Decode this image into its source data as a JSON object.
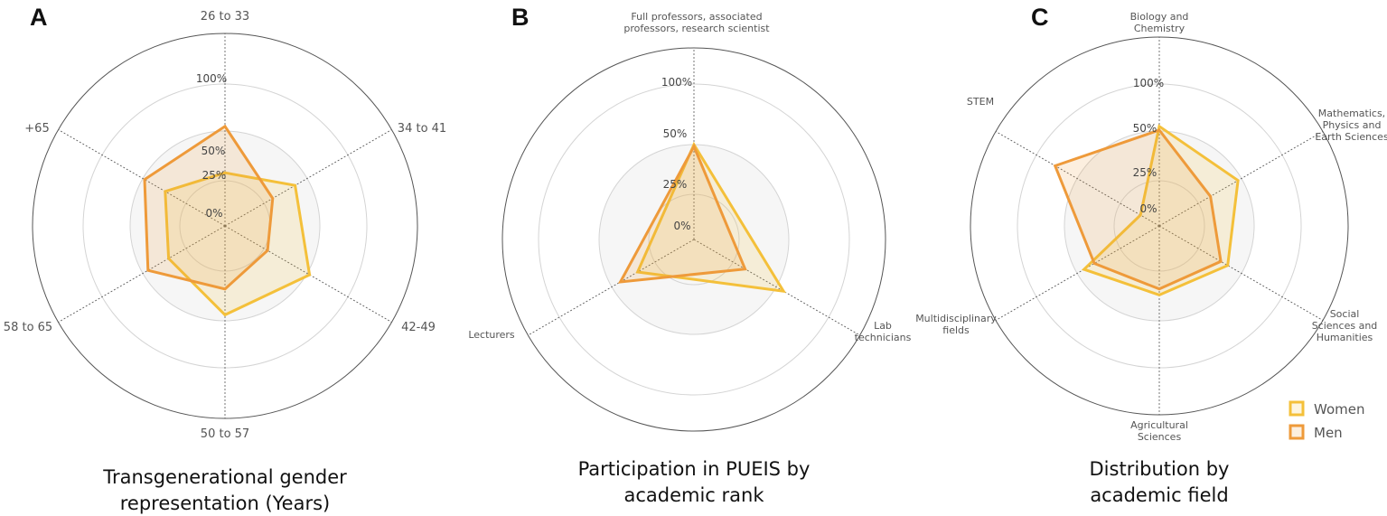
{
  "colors": {
    "women": "#F4C03A",
    "men": "#EE9A3A"
  },
  "legend": [
    {
      "name": "Women",
      "color": "#F4C03A"
    },
    {
      "name": "Men",
      "color": "#EE9A3A"
    }
  ],
  "chart_data": [
    {
      "type": "radar",
      "letter": "A",
      "title_lines": [
        "Transgenerational gender",
        "representation (Years)"
      ],
      "axes": [
        "26 to 33",
        "34 to 41",
        "42-49",
        "50 to 57",
        "58 to 65",
        "+65"
      ],
      "tick_labels": [
        "0%",
        "25%",
        "50%",
        "100%"
      ],
      "scale": "nonlinear",
      "series": [
        {
          "name": "Women",
          "values": [
            29,
            43,
            53,
            47,
            35,
            37
          ]
        },
        {
          "name": "Men",
          "values": [
            55,
            30,
            27,
            34,
            47,
            49
          ]
        }
      ]
    },
    {
      "type": "radar",
      "letter": "B",
      "title_lines": [
        "Participation in PUEIS by",
        "academic rank"
      ],
      "axes": [
        "Full professors, associated professors, research scientist",
        "Lab technicians",
        "Lecturers"
      ],
      "axis_label_lines": [
        [
          "Full professors, associated",
          "professors, research scientist"
        ],
        [
          "Lab",
          "technicians"
        ],
        [
          "Lecturers"
        ]
      ],
      "tick_labels": [
        "0%",
        "25%",
        "50%",
        "100%"
      ],
      "scale": "nonlinear",
      "series": [
        {
          "name": "Women",
          "values": [
            50,
            57,
            35
          ]
        },
        {
          "name": "Men",
          "values": [
            49,
            32,
            45
          ]
        }
      ]
    },
    {
      "type": "radar",
      "letter": "C",
      "title_lines": [
        "Distribution by",
        "academic field"
      ],
      "axes": [
        "Biology and Chemistry",
        "Mathematics, Physics and Earth Sciences",
        "Social Sciences and Humanities",
        "Agricultural Sciences",
        "Multidisciplinary fields",
        "STEM"
      ],
      "axis_label_lines": [
        [
          "Biology and",
          "Chemistry"
        ],
        [
          "Mathematics,",
          "Physics and",
          "Earth Sciences"
        ],
        [
          "Social",
          "Sciences and",
          "Humanities"
        ],
        [
          "Agricultural",
          "Sciences"
        ],
        [
          "Multidisciplinary",
          "fields"
        ],
        [
          "STEM"
        ]
      ],
      "tick_labels": [
        "0%",
        "25%",
        "50%",
        "100%"
      ],
      "scale": "nonlinear",
      "series": [
        {
          "name": "Women",
          "values": [
            55,
            48,
            42,
            37,
            46,
            12
          ]
        },
        {
          "name": "Men",
          "values": [
            51,
            32,
            38,
            34,
            40,
            77
          ]
        }
      ]
    }
  ]
}
